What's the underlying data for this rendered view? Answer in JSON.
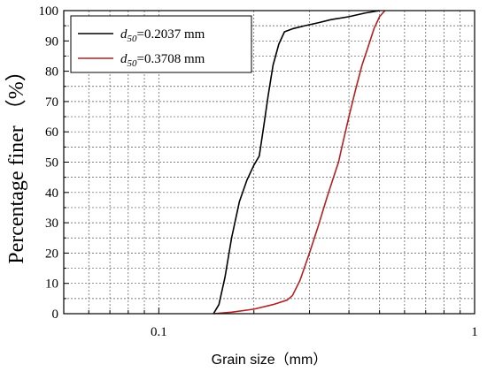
{
  "chart_data": {
    "type": "line",
    "xlabel": "Grain size（mm）",
    "ylabel": "Percentage  finer （%）",
    "xscale": "log",
    "xlim": [
      0.05,
      1
    ],
    "ylim": [
      0,
      100
    ],
    "xticks": [
      {
        "value": 0.1,
        "label": "0.1"
      },
      {
        "value": 1,
        "label": "1"
      }
    ],
    "yticks": [
      {
        "value": 0,
        "label": "0"
      },
      {
        "value": 10,
        "label": "10"
      },
      {
        "value": 20,
        "label": "20"
      },
      {
        "value": 30,
        "label": "30"
      },
      {
        "value": 40,
        "label": "40"
      },
      {
        "value": 50,
        "label": "50"
      },
      {
        "value": 60,
        "label": "60"
      },
      {
        "value": 70,
        "label": "70"
      },
      {
        "value": 80,
        "label": "80"
      },
      {
        "value": 90,
        "label": "90"
      },
      {
        "value": 100,
        "label": "100"
      }
    ],
    "grid": true,
    "legend_position": "top-left",
    "series": [
      {
        "legend_d": "d",
        "legend_sub": "50",
        "legend_rest": "=0.2037 mm",
        "color": "#000000",
        "points": [
          [
            0.149,
            0
          ],
          [
            0.155,
            3
          ],
          [
            0.162,
            12
          ],
          [
            0.17,
            25
          ],
          [
            0.18,
            37
          ],
          [
            0.19,
            44
          ],
          [
            0.2,
            49
          ],
          [
            0.208,
            52
          ],
          [
            0.215,
            62
          ],
          [
            0.222,
            72
          ],
          [
            0.23,
            82
          ],
          [
            0.24,
            89
          ],
          [
            0.25,
            93
          ],
          [
            0.265,
            94
          ],
          [
            0.29,
            95
          ],
          [
            0.32,
            96
          ],
          [
            0.35,
            97
          ],
          [
            0.4,
            98
          ],
          [
            0.45,
            99.2
          ],
          [
            0.5,
            100
          ]
        ]
      },
      {
        "legend_d": "d",
        "legend_sub": "50",
        "legend_rest": "=0.3708 mm",
        "color": "#b22222",
        "points": [
          [
            0.149,
            0
          ],
          [
            0.17,
            0.5
          ],
          [
            0.2,
            1.5
          ],
          [
            0.23,
            3
          ],
          [
            0.255,
            4.5
          ],
          [
            0.265,
            6
          ],
          [
            0.28,
            11
          ],
          [
            0.3,
            20
          ],
          [
            0.32,
            29
          ],
          [
            0.34,
            38
          ],
          [
            0.36,
            46
          ],
          [
            0.3708,
            50
          ],
          [
            0.38,
            55
          ],
          [
            0.4,
            65
          ],
          [
            0.42,
            74
          ],
          [
            0.44,
            82
          ],
          [
            0.46,
            88
          ],
          [
            0.48,
            94
          ],
          [
            0.5,
            98
          ],
          [
            0.52,
            100
          ]
        ]
      }
    ]
  }
}
